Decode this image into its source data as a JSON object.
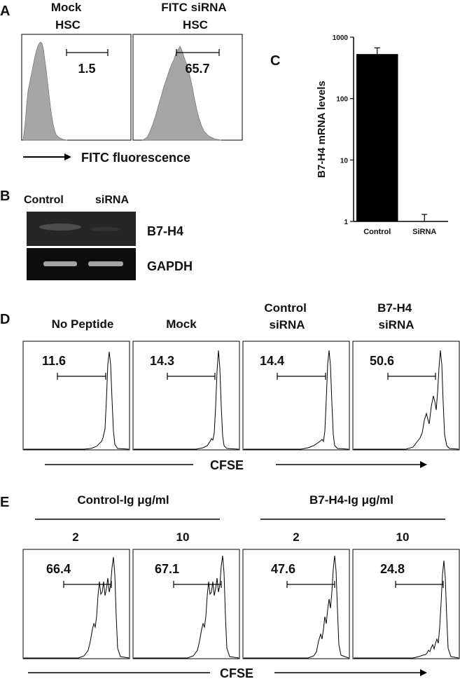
{
  "panels": {
    "a": {
      "letter": "A",
      "samples": [
        "Mock\nHSC",
        "FITC siRNA\nHSC"
      ],
      "gate_values": [
        "1.5",
        "65.7"
      ],
      "axis_label": "FITC fluorescence"
    },
    "b": {
      "letter": "B",
      "lane_labels": [
        "Control",
        "siRNA"
      ],
      "band_labels": [
        "B7-H4",
        "GAPDH"
      ]
    },
    "c": {
      "letter": "C"
    },
    "d": {
      "letter": "D",
      "samples": [
        "No Peptide",
        "Mock",
        "Control\nsiRNA",
        "B7-H4\nsiRNA"
      ],
      "gate_values": [
        "11.6",
        "14.3",
        "14.4",
        "50.6"
      ],
      "axis_label": "CFSE"
    },
    "e": {
      "letter": "E",
      "groups": [
        "Control-Ig μg/ml",
        "B7-H4-Ig μg/ml"
      ],
      "concentrations": [
        "2",
        "10",
        "2",
        "10"
      ],
      "gate_values": [
        "66.4",
        "67.1",
        "47.6",
        "24.8"
      ],
      "axis_label": "CFSE"
    }
  },
  "chart_data": {
    "type": "bar",
    "categories": [
      "Control",
      "SiRNA"
    ],
    "values": [
      530,
      1
    ],
    "errors": [
      140,
      0.3
    ],
    "ylabel": "B7-H4 mRNA levels",
    "yscale": "log",
    "ylim": [
      1,
      1000
    ],
    "yticks": [
      "1",
      "10",
      "100",
      "1000"
    ],
    "colors": [
      "#000000",
      "#000000"
    ]
  }
}
